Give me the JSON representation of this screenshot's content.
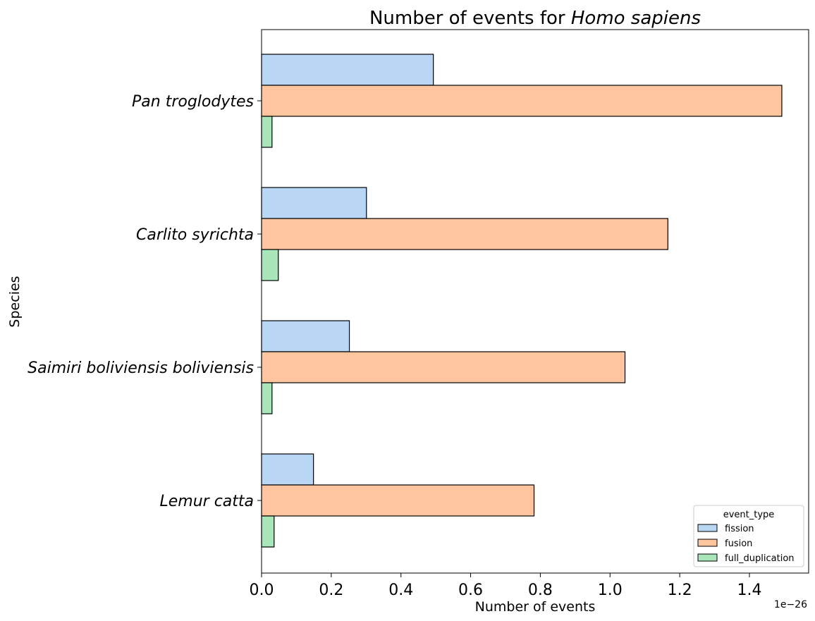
{
  "chart_data": {
    "type": "bar",
    "orientation": "horizontal",
    "title_prefix": "Number of events for ",
    "title_species": "Homo sapiens",
    "xlabel": "Number of events",
    "ylabel": "Species",
    "x_offset_label": "1e−26",
    "xlim": [
      0,
      1.57
    ],
    "xticks": [
      "0.0",
      "0.2",
      "0.4",
      "0.6",
      "0.8",
      "1.0",
      "1.2",
      "1.4"
    ],
    "categories": [
      "Pan troglodytes",
      "Carlito syrichta",
      "Saimiri boliviensis boliviensis",
      "Lemur catta"
    ],
    "series": [
      {
        "name": "fission",
        "color": "#b9d7f4",
        "values": [
          0.493,
          0.301,
          0.252,
          0.149
        ]
      },
      {
        "name": "fusion",
        "color": "#ffc59f",
        "values": [
          1.493,
          1.166,
          1.043,
          0.782
        ]
      },
      {
        "name": "full_duplication",
        "color": "#a9e7bb",
        "values": [
          0.03,
          0.048,
          0.03,
          0.036
        ]
      }
    ],
    "legend": {
      "title": "event_type",
      "placement": "lower right"
    },
    "grid": false
  }
}
